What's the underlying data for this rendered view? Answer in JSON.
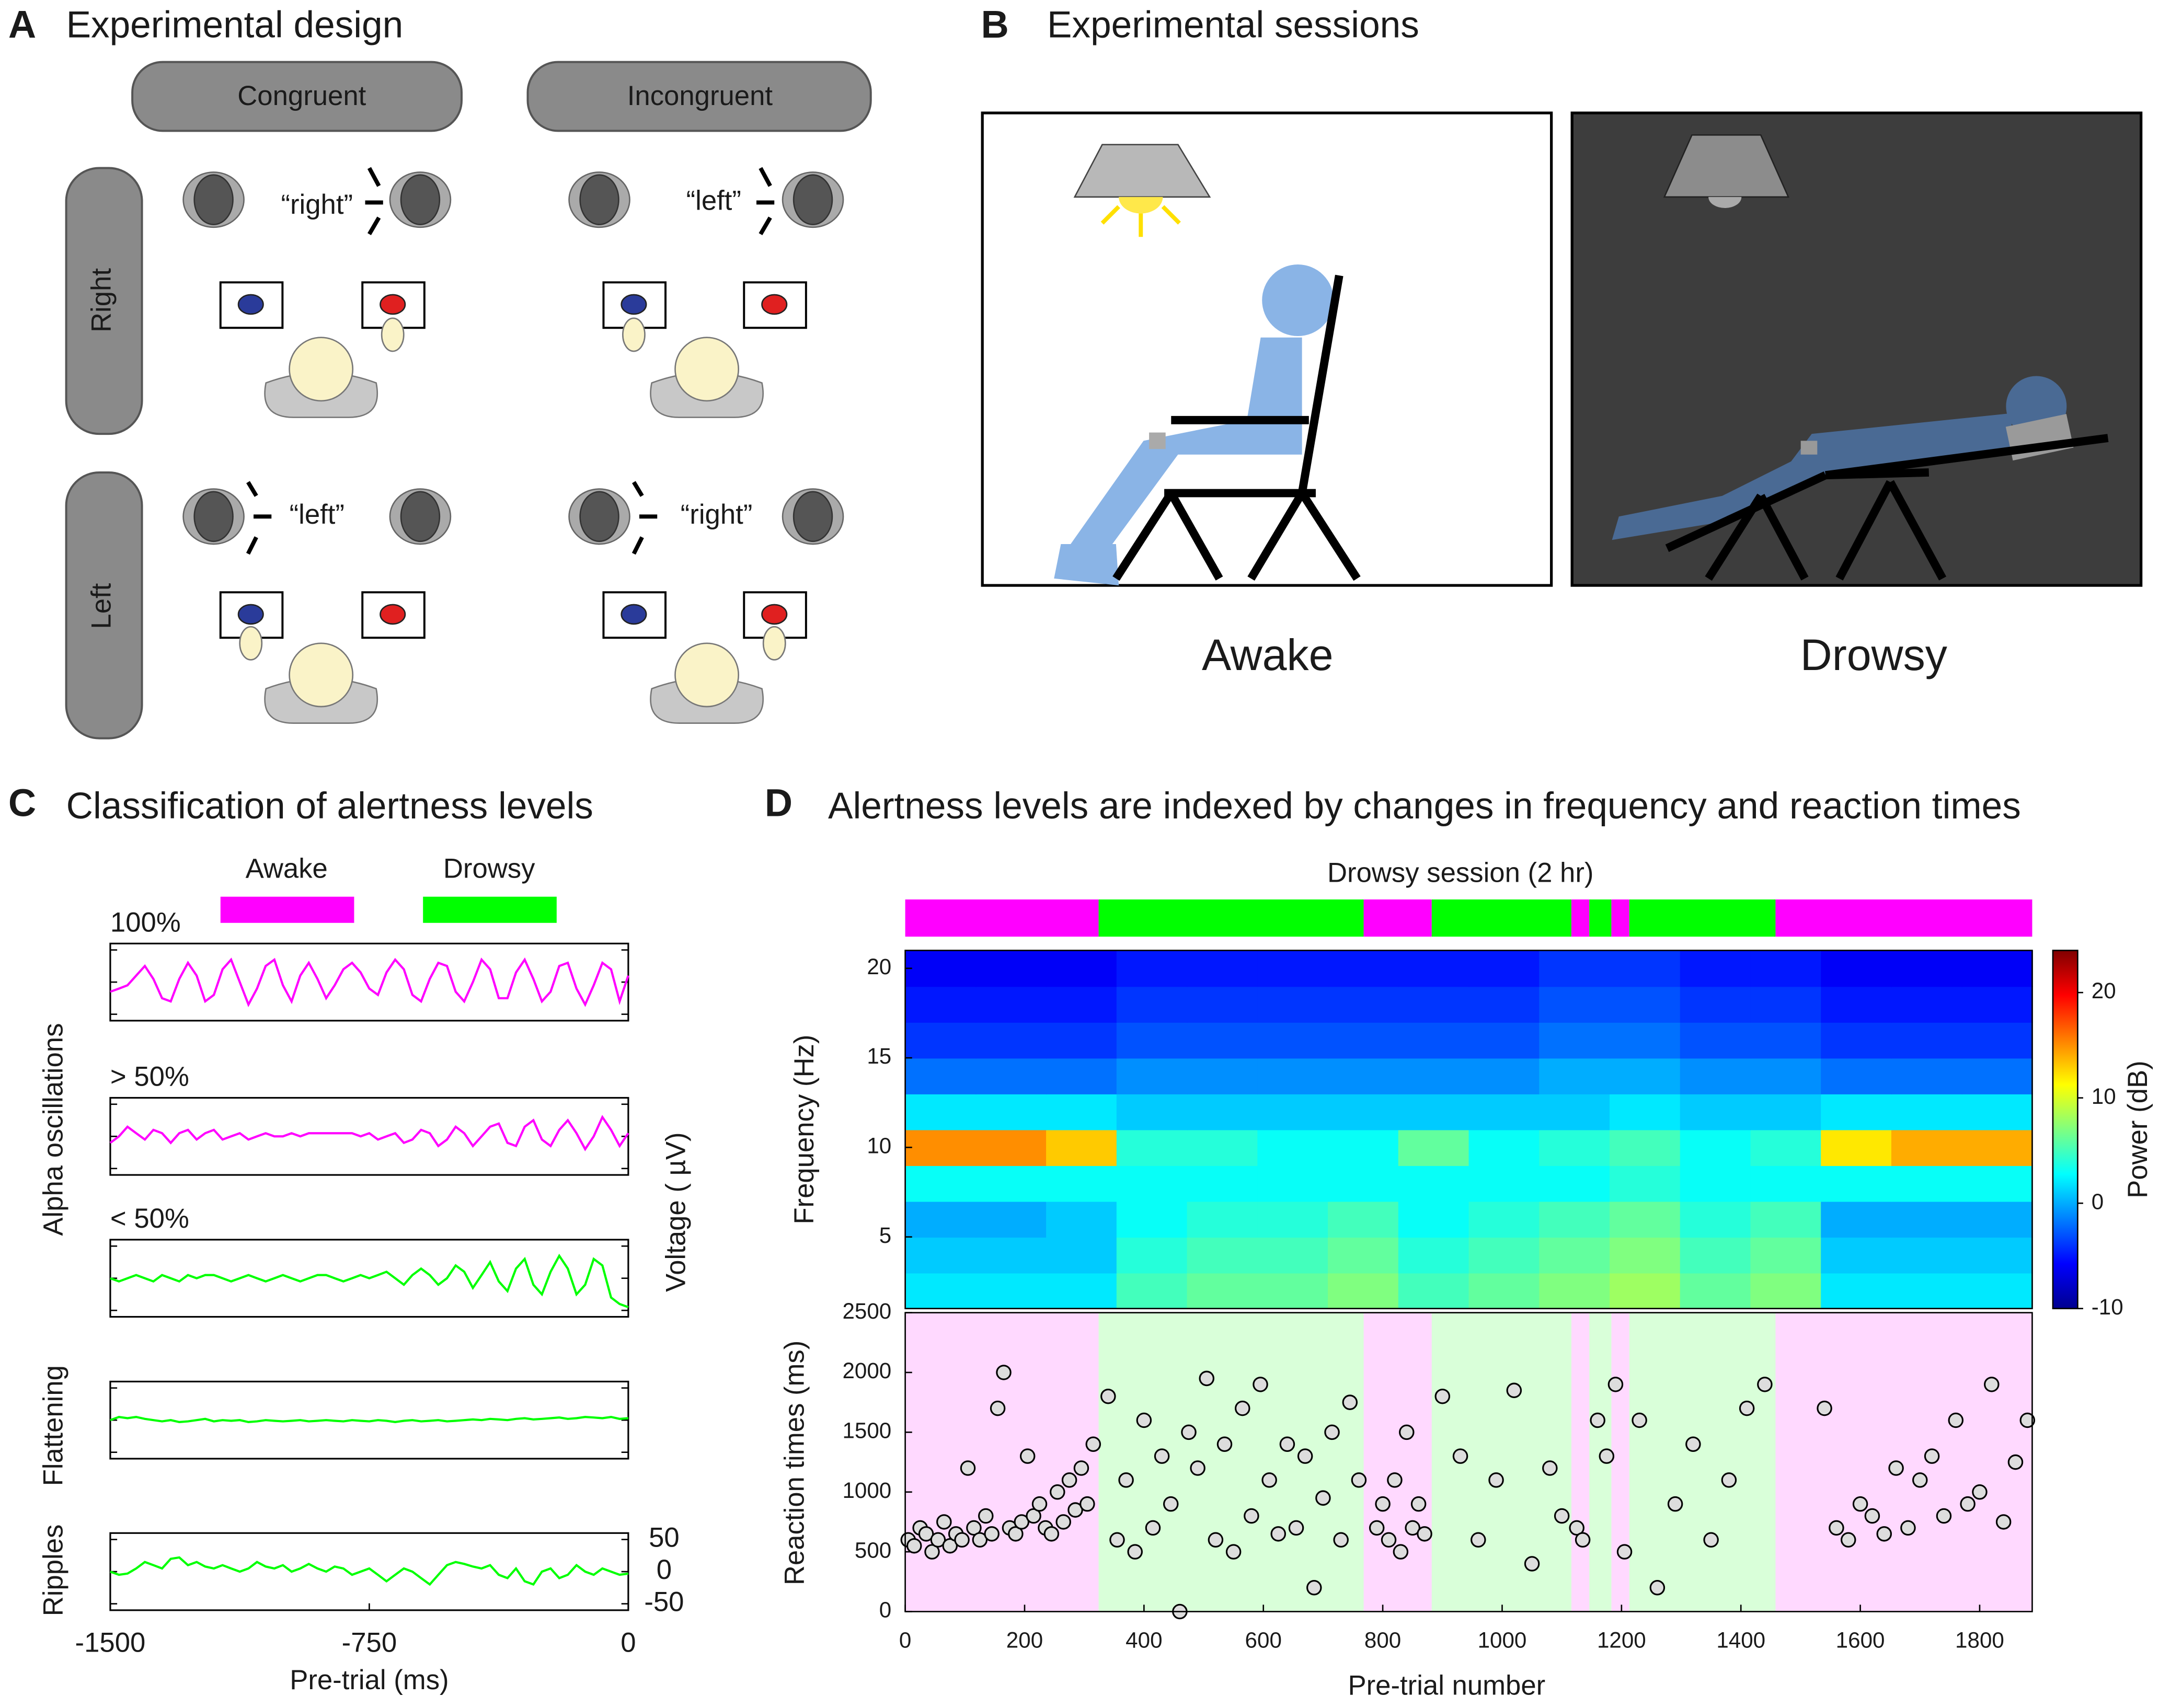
{
  "panels": {
    "a": {
      "letter": "A",
      "title": "Experimental design",
      "columns": [
        "Congruent",
        "Incongruent"
      ],
      "rows": [
        "Right",
        "Left"
      ],
      "words": [
        "“right”",
        "“left”",
        "“left”",
        "“right”"
      ]
    },
    "b": {
      "letter": "B",
      "title": "Experimental sessions",
      "labels": [
        "Awake",
        "Drowsy"
      ]
    },
    "c": {
      "letter": "C",
      "title": "Classification of alertness levels"
    },
    "d": {
      "letter": "D",
      "title": "Alertness levels are indexed by changes in frequency and reaction times"
    }
  },
  "chart_data": [
    {
      "type": "line",
      "legend": [
        {
          "name": "Awake",
          "color": "#ff00ff"
        },
        {
          "name": "Drowsy",
          "color": "#00ff00"
        }
      ],
      "groups": [
        "Alpha oscillations",
        "Flattening",
        "Ripples"
      ],
      "xlabel": "Pre-trial (ms)",
      "ylabel": "Voltage ( µV)",
      "xlim": [
        -1500,
        0
      ],
      "xticks": [
        -1500,
        -750,
        0
      ],
      "ylim": [
        -60,
        60
      ],
      "yticks": [
        -50,
        0,
        50
      ],
      "x": [
        -1500,
        -1475,
        -1450,
        -1425,
        -1400,
        -1375,
        -1350,
        -1325,
        -1300,
        -1275,
        -1250,
        -1225,
        -1200,
        -1175,
        -1150,
        -1125,
        -1100,
        -1075,
        -1050,
        -1025,
        -1000,
        -975,
        -950,
        -925,
        -900,
        -875,
        -850,
        -825,
        -800,
        -775,
        -750,
        -725,
        -700,
        -675,
        -650,
        -625,
        -600,
        -575,
        -550,
        -525,
        -500,
        -475,
        -450,
        -425,
        -400,
        -375,
        -350,
        -325,
        -300,
        -275,
        -250,
        -225,
        -200,
        -175,
        -150,
        -125,
        -100,
        -75,
        -50,
        -25,
        0
      ],
      "series": [
        {
          "name": "100%",
          "color": "#ff00ff",
          "values": [
            -15,
            -10,
            -5,
            10,
            25,
            5,
            -25,
            -30,
            5,
            30,
            10,
            -30,
            -20,
            20,
            35,
            0,
            -35,
            -10,
            25,
            35,
            -5,
            -30,
            10,
            30,
            5,
            -25,
            -5,
            20,
            30,
            15,
            -10,
            -20,
            15,
            35,
            20,
            -20,
            -30,
            5,
            30,
            25,
            -15,
            -30,
            0,
            35,
            20,
            -25,
            -25,
            15,
            35,
            5,
            -30,
            -15,
            25,
            30,
            -10,
            -35,
            -5,
            30,
            20,
            -30,
            10
          ]
        },
        {
          "name": "> 50%",
          "color": "#ff00ff",
          "values": [
            -10,
            0,
            15,
            5,
            -5,
            10,
            5,
            -10,
            5,
            10,
            -5,
            5,
            10,
            -5,
            0,
            5,
            -5,
            0,
            5,
            0,
            0,
            5,
            0,
            5,
            5,
            5,
            5,
            5,
            5,
            0,
            5,
            -5,
            0,
            5,
            -10,
            -5,
            10,
            5,
            -15,
            -5,
            15,
            5,
            -15,
            0,
            15,
            20,
            -10,
            -15,
            15,
            25,
            -5,
            -15,
            10,
            25,
            5,
            -20,
            0,
            30,
            10,
            -15,
            5
          ]
        },
        {
          "name": "< 50%",
          "color": "#00ff00",
          "values": [
            0,
            -5,
            0,
            5,
            0,
            -5,
            5,
            0,
            -5,
            5,
            0,
            5,
            5,
            0,
            -5,
            0,
            5,
            0,
            -5,
            0,
            5,
            0,
            -5,
            0,
            5,
            5,
            0,
            -5,
            0,
            5,
            0,
            5,
            10,
            0,
            -10,
            5,
            15,
            5,
            -10,
            0,
            20,
            10,
            -15,
            5,
            25,
            -5,
            -20,
            15,
            30,
            -10,
            -25,
            10,
            35,
            15,
            -25,
            -10,
            30,
            20,
            -30,
            -40,
            -45
          ]
        },
        {
          "color": "#00ff00",
          "values": [
            0,
            5,
            3,
            5,
            2,
            0,
            -2,
            0,
            -3,
            -2,
            0,
            2,
            -2,
            0,
            -1,
            0,
            -3,
            -2,
            0,
            -1,
            -2,
            -1,
            0,
            -2,
            -1,
            0,
            -1,
            -2,
            0,
            -1,
            -2,
            0,
            -1,
            -3,
            -1,
            0,
            -2,
            -1,
            0,
            -2,
            -1,
            0,
            1,
            0,
            2,
            1,
            0,
            2,
            3,
            1,
            2,
            3,
            4,
            2,
            3,
            5,
            4,
            3,
            5,
            2,
            3
          ]
        },
        {
          "color": "#00ff00",
          "values": [
            0,
            -5,
            -3,
            5,
            15,
            10,
            5,
            20,
            22,
            10,
            15,
            8,
            5,
            10,
            5,
            0,
            5,
            15,
            8,
            5,
            10,
            0,
            5,
            12,
            5,
            0,
            8,
            5,
            -5,
            0,
            5,
            -5,
            -15,
            -5,
            5,
            0,
            -10,
            -20,
            -5,
            10,
            15,
            12,
            8,
            5,
            10,
            -5,
            -10,
            5,
            -15,
            -20,
            0,
            5,
            -10,
            -5,
            10,
            0,
            -5,
            5,
            0,
            -5,
            -3
          ]
        }
      ]
    },
    {
      "type": "heatmap",
      "title": "Drowsy session (2 hr)",
      "ylabel": "Frequency (Hz)",
      "colorbar_label": "Power (dB)",
      "segments": [
        {
          "start": 0,
          "end": 324,
          "color": "#ff00ff"
        },
        {
          "start": 324,
          "end": 768,
          "color": "#00ff00"
        },
        {
          "start": 768,
          "end": 882,
          "color": "#ff00ff"
        },
        {
          "start": 882,
          "end": 1116,
          "color": "#00ff00"
        },
        {
          "start": 1116,
          "end": 1146,
          "color": "#ff00ff"
        },
        {
          "start": 1146,
          "end": 1183,
          "color": "#00ff00"
        },
        {
          "start": 1183,
          "end": 1213,
          "color": "#ff00ff"
        },
        {
          "start": 1213,
          "end": 1458,
          "color": "#00ff00"
        },
        {
          "start": 1458,
          "end": 1888,
          "color": "#ff00ff"
        }
      ],
      "xlim": [
        0,
        1888
      ],
      "ylim": [
        1,
        21
      ],
      "yticks": [
        5,
        10,
        15,
        20
      ],
      "clim": [
        -10,
        24
      ],
      "cticks": [
        -10,
        0,
        10,
        20
      ],
      "xbins": [
        0,
        118,
        236,
        354,
        472,
        590,
        708,
        826,
        944,
        1062,
        1180,
        1298,
        1416,
        1534,
        1652,
        1770,
        1888
      ],
      "ybins": [
        1,
        3,
        5,
        7,
        9,
        11,
        13,
        15,
        17,
        19,
        21
      ],
      "values": [
        [
          2,
          2,
          2,
          5,
          6,
          6,
          7,
          5,
          6,
          7,
          8,
          6,
          7,
          2,
          2,
          2
        ],
        [
          1,
          1,
          1,
          4,
          5,
          5,
          6,
          4,
          5,
          6,
          7,
          5,
          6,
          1,
          1,
          1
        ],
        [
          0,
          0,
          1,
          3,
          4,
          4,
          5,
          3,
          4,
          5,
          6,
          4,
          5,
          0,
          0,
          0
        ],
        [
          3,
          3,
          3,
          3,
          3,
          3,
          3,
          3,
          3,
          3,
          4,
          3,
          3,
          3,
          3,
          3
        ],
        [
          15,
          15,
          13,
          4,
          4,
          3,
          3,
          6,
          3,
          4,
          5,
          3,
          4,
          12,
          14,
          14
        ],
        [
          2,
          2,
          2,
          1,
          1,
          1,
          1,
          1,
          1,
          1,
          2,
          1,
          1,
          2,
          2,
          2
        ],
        [
          -2,
          -2,
          -2,
          -1,
          -1,
          -1,
          -1,
          -1,
          -1,
          0,
          0,
          -1,
          -1,
          -2,
          -2,
          -2
        ],
        [
          -4,
          -4,
          -4,
          -3,
          -3,
          -3,
          -3,
          -3,
          -3,
          -2,
          -2,
          -3,
          -3,
          -4,
          -4,
          -4
        ],
        [
          -5,
          -5,
          -5,
          -4,
          -4,
          -4,
          -4,
          -4,
          -4,
          -3,
          -3,
          -4,
          -4,
          -5,
          -5,
          -5
        ],
        [
          -6,
          -6,
          -6,
          -5,
          -5,
          -5,
          -5,
          -5,
          -5,
          -4,
          -4,
          -5,
          -5,
          -6,
          -6,
          -6
        ]
      ]
    },
    {
      "type": "scatter",
      "xlabel": "Pre-trial number",
      "ylabel": "Reaction times (ms)",
      "xlim": [
        0,
        1888
      ],
      "xticks": [
        0,
        200,
        400,
        600,
        800,
        1000,
        1200,
        1400,
        1600,
        1800
      ],
      "ylim": [
        0,
        2500
      ],
      "yticks": [
        0,
        500,
        1000,
        1500,
        2000,
        2500
      ],
      "x": [
        5,
        15,
        25,
        35,
        45,
        55,
        65,
        75,
        85,
        95,
        105,
        115,
        125,
        135,
        145,
        155,
        165,
        175,
        185,
        195,
        205,
        215,
        225,
        235,
        245,
        255,
        265,
        275,
        285,
        295,
        305,
        315,
        340,
        355,
        370,
        385,
        400,
        415,
        430,
        445,
        460,
        475,
        490,
        505,
        520,
        535,
        550,
        565,
        580,
        595,
        610,
        625,
        640,
        655,
        670,
        685,
        700,
        715,
        730,
        745,
        760,
        790,
        800,
        810,
        820,
        830,
        840,
        850,
        860,
        870,
        900,
        930,
        960,
        990,
        1020,
        1050,
        1080,
        1100,
        1125,
        1135,
        1160,
        1175,
        1190,
        1205,
        1230,
        1260,
        1290,
        1320,
        1350,
        1380,
        1410,
        1440,
        1540,
        1560,
        1580,
        1600,
        1620,
        1640,
        1660,
        1680,
        1700,
        1720,
        1740,
        1760,
        1780,
        1800,
        1820,
        1840,
        1860,
        1880
      ],
      "values": [
        600,
        550,
        700,
        650,
        500,
        600,
        750,
        550,
        650,
        600,
        1200,
        700,
        600,
        800,
        650,
        1700,
        2000,
        700,
        650,
        750,
        1300,
        800,
        900,
        700,
        650,
        1000,
        750,
        1100,
        850,
        1200,
        900,
        1400,
        1800,
        600,
        1100,
        500,
        1600,
        700,
        1300,
        900,
        0,
        1500,
        1200,
        1950,
        600,
        1400,
        500,
        1700,
        800,
        1900,
        1100,
        650,
        1400,
        700,
        1300,
        200,
        950,
        1500,
        600,
        1750,
        1100,
        700,
        900,
        600,
        1100,
        500,
        1500,
        700,
        900,
        650,
        1800,
        1300,
        600,
        1100,
        1850,
        400,
        1200,
        800,
        700,
        600,
        1600,
        1300,
        1900,
        500,
        1600,
        200,
        900,
        1400,
        600,
        1100,
        1700,
        1900,
        1700,
        700,
        600,
        900,
        800,
        650,
        1200,
        700,
        1100,
        1300,
        800,
        1600,
        900,
        1000,
        1900,
        750,
        1250,
        1600
      ]
    }
  ]
}
